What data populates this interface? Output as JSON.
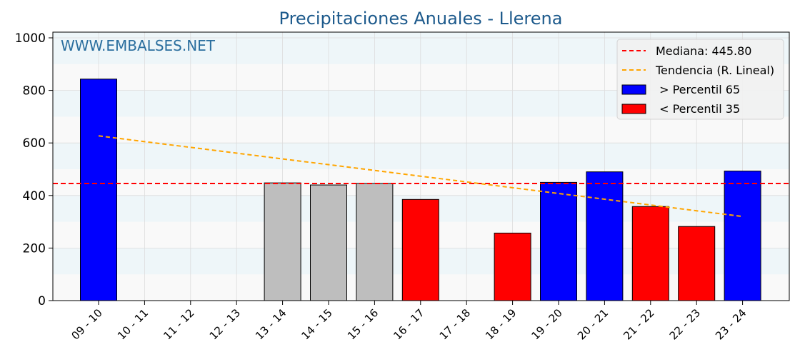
{
  "chart_data": {
    "type": "bar",
    "title": "Precipitaciones Anuales - Llerena",
    "watermark": "WWW.EMBALSES.NET",
    "categories": [
      "09 - 10",
      "10 - 11",
      "11 - 12",
      "12 - 13",
      "13 - 14",
      "14 - 15",
      "15 - 16",
      "16 - 17",
      "17 - 18",
      "18 - 19",
      "19 - 20",
      "20 - 21",
      "21 - 22",
      "22 - 23",
      "23 - 24"
    ],
    "values": [
      843,
      null,
      null,
      null,
      448,
      440,
      446,
      385,
      null,
      257,
      450,
      490,
      358,
      282,
      493
    ],
    "bar_classes": [
      "high",
      null,
      null,
      null,
      "mid",
      "mid",
      "mid",
      "low",
      null,
      "low",
      "high",
      "high",
      "low",
      "low",
      "high"
    ],
    "colors": {
      "high": "#0000ff",
      "low": "#ff0000",
      "mid": "#bebebe",
      "median": "#ff0000",
      "trend": "#ffa500",
      "title": "#1d5a8c",
      "watermark": "#2a6e9e",
      "band": "#eef6f9",
      "band_alt": "#f9f9f9"
    },
    "median": 445.8,
    "trend": {
      "start": {
        "category": "09 - 10",
        "value": 627
      },
      "end": {
        "category": "23 - 24",
        "value": 320
      }
    },
    "ylim": [
      0,
      1000
    ],
    "yticks": [
      0,
      200,
      400,
      600,
      800,
      1000
    ],
    "legend": {
      "placement": "top-right",
      "entries": [
        {
          "label": "Mediana: 445.80",
          "kind": "line",
          "color": "#ff0000"
        },
        {
          "label": "Tendencia (R. Lineal)",
          "kind": "line",
          "color": "#ffa500"
        },
        {
          "label": " > Percentil 65",
          "kind": "box",
          "color": "#0000ff"
        },
        {
          "label": " < Percentil 35",
          "kind": "box",
          "color": "#ff0000"
        }
      ]
    },
    "grid": true
  }
}
